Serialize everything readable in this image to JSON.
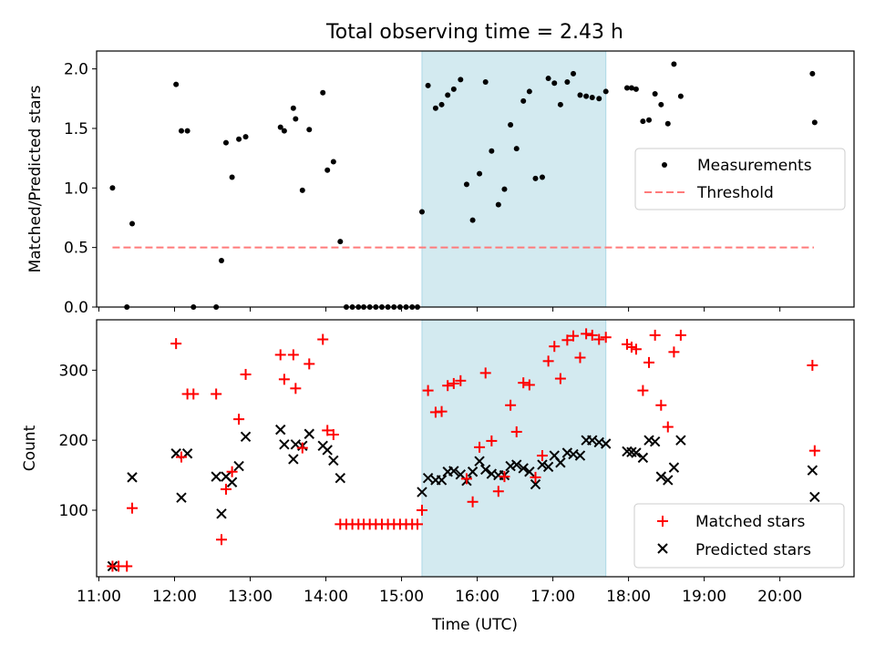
{
  "figure": {
    "title": "Total observing time = 2.43 h",
    "xlabel": "Time (UTC)",
    "xticks": [
      "11:00",
      "12:00",
      "13:00",
      "14:00",
      "15:00",
      "16:00",
      "17:00",
      "18:00",
      "19:00",
      "20:00"
    ]
  },
  "colors": {
    "measurement": "#000000",
    "threshold": "#ff7a7a",
    "matched": "#ff0000",
    "predicted": "#000000",
    "span": "#d3eaf0",
    "spanEdge": "#add8e6"
  },
  "chart_data": [
    {
      "type": "scatter",
      "panel": "top",
      "ylabel": "Matched/Predicted stars",
      "ylim": [
        0,
        2.15
      ],
      "xlim": [
        10.97,
        20.98
      ],
      "yticks": [
        "0.0",
        "0.5",
        "1.0",
        "1.5",
        "2.0"
      ],
      "shaded_span": [
        15.27,
        17.7
      ],
      "legend": {
        "placement": "center-right",
        "entries": [
          "Measurements",
          "Threshold"
        ]
      },
      "threshold": {
        "name": "Threshold",
        "y": 0.5,
        "x_range": [
          11.18,
          20.45
        ],
        "style": "dashed"
      },
      "series": [
        {
          "name": "Measurements",
          "marker": "dot",
          "points": [
            [
              11.18,
              1.0
            ],
            [
              11.37,
              0.0
            ],
            [
              11.44,
              0.7
            ],
            [
              12.02,
              1.87
            ],
            [
              12.09,
              1.48
            ],
            [
              12.17,
              1.48
            ],
            [
              12.25,
              0.0
            ],
            [
              12.55,
              0.0
            ],
            [
              12.62,
              0.39
            ],
            [
              12.68,
              1.38
            ],
            [
              12.76,
              1.09
            ],
            [
              12.85,
              1.41
            ],
            [
              12.94,
              1.43
            ],
            [
              13.4,
              1.51
            ],
            [
              13.45,
              1.48
            ],
            [
              13.57,
              1.67
            ],
            [
              13.6,
              1.58
            ],
            [
              13.69,
              0.98
            ],
            [
              13.78,
              1.49
            ],
            [
              13.96,
              1.8
            ],
            [
              14.02,
              1.15
            ],
            [
              14.1,
              1.22
            ],
            [
              14.19,
              0.55
            ],
            [
              14.27,
              0.0
            ],
            [
              14.35,
              0.0
            ],
            [
              14.43,
              0.0
            ],
            [
              14.5,
              0.0
            ],
            [
              14.58,
              0.0
            ],
            [
              14.66,
              0.0
            ],
            [
              14.74,
              0.0
            ],
            [
              14.82,
              0.0
            ],
            [
              14.9,
              0.0
            ],
            [
              14.98,
              0.0
            ],
            [
              15.06,
              0.0
            ],
            [
              15.14,
              0.0
            ],
            [
              15.21,
              0.0
            ],
            [
              15.27,
              0.8
            ],
            [
              15.35,
              1.86
            ],
            [
              15.45,
              1.67
            ],
            [
              15.53,
              1.7
            ],
            [
              15.61,
              1.78
            ],
            [
              15.69,
              1.83
            ],
            [
              15.78,
              1.91
            ],
            [
              15.86,
              1.03
            ],
            [
              15.94,
              0.73
            ],
            [
              16.03,
              1.12
            ],
            [
              16.11,
              1.89
            ],
            [
              16.19,
              1.31
            ],
            [
              16.28,
              0.86
            ],
            [
              16.36,
              0.99
            ],
            [
              16.44,
              1.53
            ],
            [
              16.52,
              1.33
            ],
            [
              16.61,
              1.73
            ],
            [
              16.69,
              1.81
            ],
            [
              16.77,
              1.08
            ],
            [
              16.86,
              1.09
            ],
            [
              16.94,
              1.92
            ],
            [
              17.02,
              1.88
            ],
            [
              17.1,
              1.7
            ],
            [
              17.19,
              1.89
            ],
            [
              17.27,
              1.96
            ],
            [
              17.36,
              1.78
            ],
            [
              17.44,
              1.77
            ],
            [
              17.52,
              1.76
            ],
            [
              17.61,
              1.75
            ],
            [
              17.7,
              1.81
            ],
            [
              17.98,
              1.84
            ],
            [
              18.04,
              1.84
            ],
            [
              18.1,
              1.83
            ],
            [
              18.19,
              1.56
            ],
            [
              18.27,
              1.57
            ],
            [
              18.35,
              1.79
            ],
            [
              18.43,
              1.7
            ],
            [
              18.52,
              1.54
            ],
            [
              18.6,
              2.04
            ],
            [
              18.69,
              1.77
            ],
            [
              20.43,
              1.96
            ],
            [
              20.46,
              1.55
            ]
          ]
        }
      ]
    },
    {
      "type": "scatter",
      "panel": "bottom",
      "ylabel": "Count",
      "ylim": [
        5,
        372
      ],
      "xlim": [
        10.97,
        20.98
      ],
      "yticks": [
        "100",
        "200",
        "300"
      ],
      "shaded_span": [
        15.27,
        17.7
      ],
      "legend": {
        "placement": "bottom-right",
        "entries": [
          "Matched stars",
          "Predicted stars"
        ]
      },
      "series": [
        {
          "name": "Matched stars",
          "marker": "plus",
          "points": [
            [
              11.18,
              20
            ],
            [
              11.26,
              20
            ],
            [
              11.37,
              20
            ],
            [
              11.44,
              103
            ],
            [
              12.02,
              338
            ],
            [
              12.09,
              176
            ],
            [
              12.17,
              266
            ],
            [
              12.25,
              266
            ],
            [
              12.55,
              266
            ],
            [
              12.62,
              58
            ],
            [
              12.68,
              130
            ],
            [
              12.76,
              155
            ],
            [
              12.85,
              230
            ],
            [
              12.94,
              294
            ],
            [
              13.4,
              322
            ],
            [
              13.45,
              287
            ],
            [
              13.57,
              322
            ],
            [
              13.6,
              274
            ],
            [
              13.69,
              189
            ],
            [
              13.78,
              309
            ],
            [
              13.96,
              344
            ],
            [
              14.02,
              214
            ],
            [
              14.1,
              208
            ],
            [
              14.19,
              80
            ],
            [
              14.27,
              80
            ],
            [
              14.35,
              80
            ],
            [
              14.43,
              80
            ],
            [
              14.5,
              80
            ],
            [
              14.58,
              80
            ],
            [
              14.66,
              80
            ],
            [
              14.74,
              80
            ],
            [
              14.82,
              80
            ],
            [
              14.9,
              80
            ],
            [
              14.98,
              80
            ],
            [
              15.06,
              80
            ],
            [
              15.14,
              80
            ],
            [
              15.21,
              80
            ],
            [
              15.27,
              100
            ],
            [
              15.35,
              271
            ],
            [
              15.45,
              240
            ],
            [
              15.53,
              241
            ],
            [
              15.61,
              278
            ],
            [
              15.69,
              281
            ],
            [
              15.78,
              285
            ],
            [
              15.86,
              145
            ],
            [
              15.94,
              112
            ],
            [
              16.03,
              190
            ],
            [
              16.11,
              296
            ],
            [
              16.19,
              199
            ],
            [
              16.28,
              127
            ],
            [
              16.36,
              148
            ],
            [
              16.44,
              250
            ],
            [
              16.52,
              212
            ],
            [
              16.61,
              282
            ],
            [
              16.69,
              279
            ],
            [
              16.77,
              147
            ],
            [
              16.86,
              178
            ],
            [
              16.94,
              313
            ],
            [
              17.02,
              334
            ],
            [
              17.1,
              288
            ],
            [
              17.19,
              343
            ],
            [
              17.27,
              349
            ],
            [
              17.36,
              318
            ],
            [
              17.44,
              352
            ],
            [
              17.52,
              350
            ],
            [
              17.61,
              344
            ],
            [
              17.7,
              347
            ],
            [
              17.98,
              337
            ],
            [
              18.04,
              333
            ],
            [
              18.1,
              330
            ],
            [
              18.19,
              271
            ],
            [
              18.27,
              311
            ],
            [
              18.35,
              350
            ],
            [
              18.43,
              250
            ],
            [
              18.52,
              219
            ],
            [
              18.6,
              326
            ],
            [
              18.69,
              350
            ],
            [
              20.43,
              307
            ],
            [
              20.46,
              185
            ]
          ]
        },
        {
          "name": "Predicted stars",
          "marker": "x",
          "points": [
            [
              11.18,
              20
            ],
            [
              11.44,
              147
            ],
            [
              12.02,
              181
            ],
            [
              12.09,
              118
            ],
            [
              12.17,
              181
            ],
            [
              12.55,
              148
            ],
            [
              12.62,
              95
            ],
            [
              12.68,
              148
            ],
            [
              12.76,
              140
            ],
            [
              12.85,
              163
            ],
            [
              12.94,
              205
            ],
            [
              13.4,
              215
            ],
            [
              13.45,
              194
            ],
            [
              13.57,
              173
            ],
            [
              13.6,
              194
            ],
            [
              13.69,
              192
            ],
            [
              13.78,
              209
            ],
            [
              13.96,
              192
            ],
            [
              14.02,
              186
            ],
            [
              14.1,
              171
            ],
            [
              14.19,
              146
            ],
            [
              15.27,
              126
            ],
            [
              15.35,
              146
            ],
            [
              15.45,
              143
            ],
            [
              15.53,
              143
            ],
            [
              15.61,
              155
            ],
            [
              15.69,
              156
            ],
            [
              15.78,
              151
            ],
            [
              15.86,
              142
            ],
            [
              15.94,
              155
            ],
            [
              16.03,
              170
            ],
            [
              16.11,
              158
            ],
            [
              16.19,
              152
            ],
            [
              16.28,
              150
            ],
            [
              16.36,
              150
            ],
            [
              16.44,
              163
            ],
            [
              16.52,
              165
            ],
            [
              16.61,
              160
            ],
            [
              16.69,
              155
            ],
            [
              16.77,
              137
            ],
            [
              16.86,
              165
            ],
            [
              16.94,
              162
            ],
            [
              17.02,
              178
            ],
            [
              17.1,
              168
            ],
            [
              17.19,
              182
            ],
            [
              17.27,
              180
            ],
            [
              17.36,
              178
            ],
            [
              17.44,
              200
            ],
            [
              17.52,
              200
            ],
            [
              17.61,
              197
            ],
            [
              17.7,
              195
            ],
            [
              17.98,
              184
            ],
            [
              18.04,
              183
            ],
            [
              18.1,
              182
            ],
            [
              18.19,
              175
            ],
            [
              18.27,
              200
            ],
            [
              18.35,
              198
            ],
            [
              18.43,
              148
            ],
            [
              18.52,
              143
            ],
            [
              18.6,
              161
            ],
            [
              18.69,
              200
            ],
            [
              20.43,
              157
            ],
            [
              20.46,
              119
            ]
          ]
        }
      ]
    }
  ]
}
